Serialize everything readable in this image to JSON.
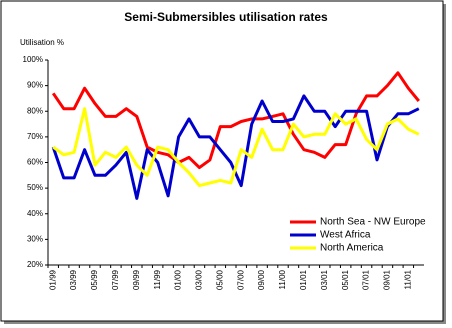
{
  "chart_data": {
    "type": "line",
    "title": "Semi-Submersibles utilisation rates",
    "y_label": "Utilisation %",
    "categories": [
      "01/99",
      null,
      "03/99",
      null,
      "05/99",
      null,
      "07/99",
      null,
      "09/99",
      null,
      "11/99",
      null,
      "01/00",
      null,
      "03/00",
      null,
      "05/00",
      null,
      "07/00",
      null,
      "09/00",
      null,
      "11/00",
      null,
      "01/01",
      null,
      "03/01",
      null,
      "05/01",
      null,
      "07/01",
      null,
      "09/01",
      null,
      "11/01",
      null
    ],
    "series": [
      {
        "name": "North Sea - NW Europe",
        "color": "#ff0000",
        "values": [
          87,
          81,
          81,
          89,
          83,
          78,
          78,
          81,
          78,
          66,
          64,
          63,
          60,
          62,
          58,
          61,
          74,
          74,
          76,
          77,
          77,
          78,
          79,
          71,
          65,
          64,
          62,
          67,
          67,
          79,
          86,
          86,
          90,
          95,
          89,
          84
        ]
      },
      {
        "name": "West Africa",
        "color": "#0000cc",
        "values": [
          66,
          54,
          54,
          65,
          55,
          55,
          59,
          64,
          46,
          65,
          60,
          47,
          70,
          77,
          70,
          70,
          65,
          60,
          51,
          75,
          84,
          76,
          76,
          77,
          86,
          80,
          80,
          74,
          80,
          80,
          80,
          61,
          74,
          79,
          79,
          81
        ]
      },
      {
        "name": "North America",
        "color": "#ffff00",
        "values": [
          66,
          63,
          64,
          81,
          59,
          64,
          62,
          66,
          59,
          55,
          66,
          65,
          60,
          56,
          51,
          52,
          53,
          52,
          65,
          62,
          73,
          65,
          65,
          75,
          70,
          71,
          71,
          79,
          75,
          77,
          69,
          65,
          75,
          77,
          73,
          71
        ]
      }
    ],
    "ylim": [
      20,
      100
    ],
    "yticks": [
      {
        "value": 20,
        "label": "20%"
      },
      {
        "value": 30,
        "label": "30%"
      },
      {
        "value": 40,
        "label": "40%"
      },
      {
        "value": 50,
        "label": "50%"
      },
      {
        "value": 60,
        "label": "60%"
      },
      {
        "value": 70,
        "label": "70%"
      },
      {
        "value": 80,
        "label": "80%"
      },
      {
        "value": 90,
        "label": "90%"
      },
      {
        "value": 100,
        "label": "100%"
      }
    ],
    "grid": false,
    "legend": "lower right"
  }
}
